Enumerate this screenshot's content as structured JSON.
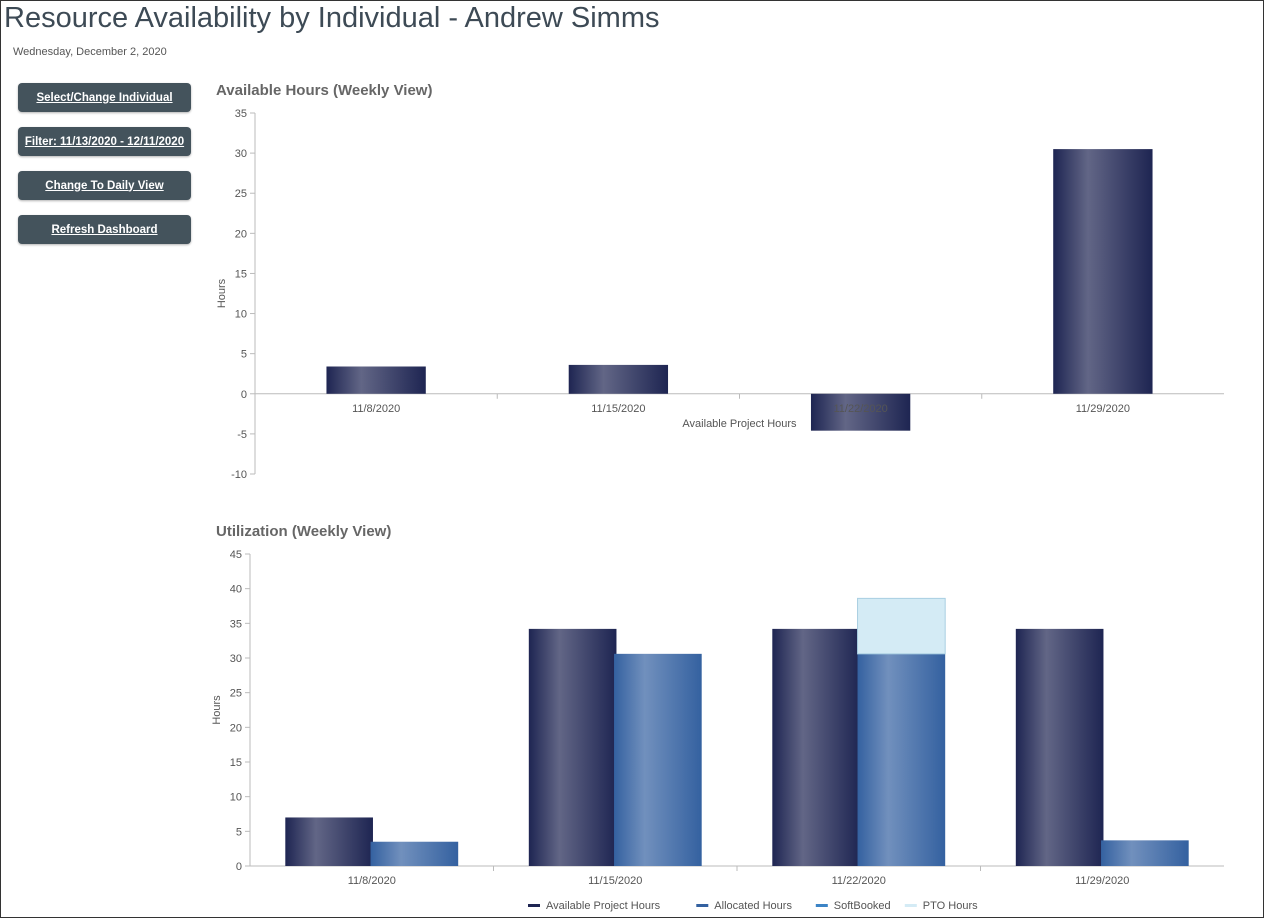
{
  "header": {
    "title": "Resource Availability by Individual - Andrew Simms",
    "date": "Wednesday, December 2, 2020"
  },
  "sidebar": {
    "buttons": [
      {
        "label": "Select/Change Individual"
      },
      {
        "label": "Filter: 11/13/2020 - 12/11/2020"
      },
      {
        "label": "Change To Daily View"
      },
      {
        "label": "Refresh Dashboard"
      }
    ]
  },
  "colors": {
    "available": "#1e2552",
    "allocated": "#3461a0",
    "softbooked": "#3c84c6",
    "pto": "#d4ebf5",
    "axis": "#bbbbbb",
    "text": "#555555"
  },
  "chart_data": [
    {
      "type": "bar",
      "title": "Available Hours (Weekly View)",
      "categories": [
        "11/8/2020",
        "11/15/2020",
        "11/22/2020",
        "11/29/2020"
      ],
      "series": [
        {
          "name": "Available Project Hours",
          "values": [
            3.4,
            3.6,
            -4.6,
            30.5
          ]
        }
      ],
      "xlabel": "",
      "ylabel": "Hours",
      "ylim": [
        -10,
        35
      ],
      "yticks": [
        -10,
        -5,
        0,
        5,
        10,
        15,
        20,
        25,
        30,
        35
      ],
      "legend": "bottom"
    },
    {
      "type": "bar",
      "title": "Utilization (Weekly View)",
      "categories": [
        "11/8/2020",
        "11/15/2020",
        "11/22/2020",
        "11/29/2020"
      ],
      "series": [
        {
          "name": "Available Project Hours",
          "values": [
            7,
            34.2,
            34.2,
            34.2
          ],
          "stack": "a"
        },
        {
          "name": "Allocated Hours",
          "values": [
            3.5,
            30.6,
            30.6,
            3.7
          ],
          "stack": "b"
        },
        {
          "name": "SoftBooked",
          "values": [
            0,
            0,
            0,
            0
          ],
          "stack": "b"
        },
        {
          "name": "PTO Hours",
          "values": [
            0,
            0,
            8,
            0
          ],
          "stack": "b"
        }
      ],
      "xlabel": "",
      "ylabel": "Hours",
      "ylim": [
        0,
        45
      ],
      "yticks": [
        0,
        5,
        10,
        15,
        20,
        25,
        30,
        35,
        40,
        45
      ],
      "legend": "bottom"
    }
  ]
}
